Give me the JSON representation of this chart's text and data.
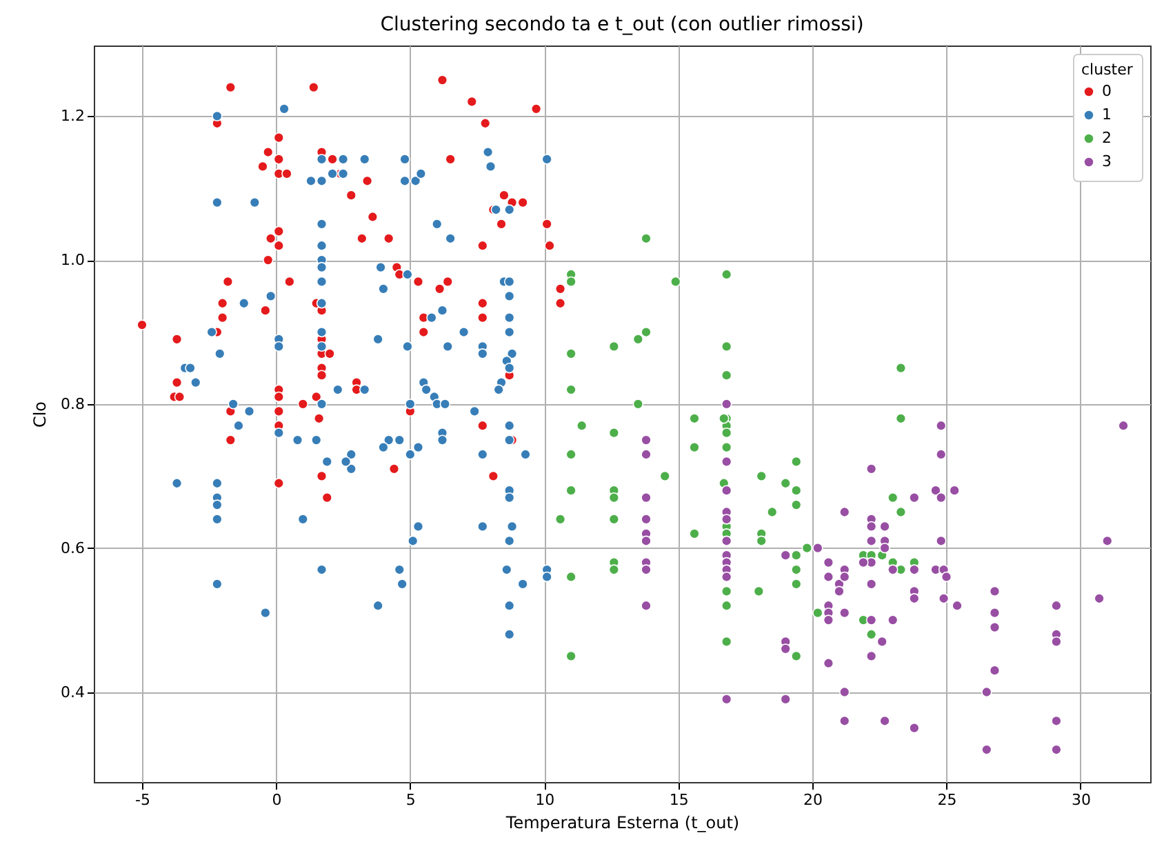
{
  "chart_data": {
    "type": "scatter",
    "title": "Clustering secondo ta e t_out (con outlier rimossi)",
    "xlabel": "Temperatura Esterna (t_out)",
    "ylabel": "Clo",
    "legend_title": "cluster",
    "legend": "top right",
    "grid": true,
    "marker": "circle",
    "xlim": [
      -6.8,
      32.6
    ],
    "xticks": [
      -5,
      0,
      5,
      10,
      15,
      20,
      25,
      30
    ],
    "ylim": [
      0.275,
      1.298
    ],
    "yticks": [
      0.4,
      0.6,
      0.8,
      {
        "value": 1,
        "label": "1.0"
      },
      1.2
    ],
    "series": [
      {
        "name": "0",
        "color": "#e41a1c",
        "x": [
          -5,
          -3.7,
          -3.7,
          -3.8,
          -3.6,
          -2.2,
          -2.2,
          -2,
          -1.7,
          -1.8,
          -1.7,
          -1.7,
          -2,
          -0.5,
          -0.3,
          -0.2,
          -0.3,
          -0.4,
          0.1,
          0.1,
          0.1,
          0.1,
          0.1,
          0.4,
          0.1,
          0.1,
          0.1,
          0.1,
          0.1,
          0.5,
          1,
          1.4,
          1.5,
          1.5,
          1.7,
          1.7,
          1.7,
          1.7,
          1.7,
          1.7,
          1.7,
          2,
          1.9,
          1.6,
          2.4,
          2.1,
          2.8,
          3.2,
          3.4,
          3.6,
          3,
          3,
          4.4,
          4.2,
          4.5,
          4.6,
          5.3,
          5.5,
          5.5,
          5,
          6.2,
          6.5,
          6.1,
          6.4,
          7.3,
          7.8,
          8.5,
          8.1,
          7.7,
          7.7,
          7.7,
          8.4,
          8.8,
          7.7,
          8.7,
          8.1,
          8.8,
          9.7,
          10.1,
          10.2,
          10.6,
          10.6,
          9.2
        ],
        "values": [
          0.91,
          0.89,
          0.83,
          0.81,
          0.81,
          1.19,
          0.9,
          0.94,
          1.24,
          0.97,
          0.79,
          0.75,
          0.92,
          1.13,
          1.15,
          1.03,
          1,
          0.93,
          1.17,
          1.14,
          1.12,
          1.04,
          1.02,
          1.12,
          0.82,
          0.81,
          0.79,
          0.77,
          0.69,
          0.97,
          0.8,
          1.24,
          0.94,
          0.81,
          1.15,
          0.93,
          0.89,
          0.87,
          0.85,
          0.84,
          0.7,
          0.87,
          0.67,
          0.78,
          1.12,
          1.14,
          1.09,
          1.03,
          1.11,
          1.06,
          0.83,
          0.82,
          0.71,
          1.03,
          0.99,
          0.98,
          0.97,
          0.92,
          0.9,
          0.79,
          1.25,
          1.14,
          0.96,
          0.97,
          1.22,
          1.19,
          1.09,
          1.07,
          1.02,
          0.94,
          0.92,
          1.05,
          1.08,
          0.77,
          0.84,
          0.7,
          0.75,
          1.21,
          1.05,
          1.02,
          0.96,
          0.94,
          1.08
        ]
      },
      {
        "name": "1",
        "color": "#377eb8",
        "x": [
          -3.7,
          -3.4,
          -3.2,
          -3,
          -2.2,
          -2.2,
          -2.4,
          -2.1,
          -2.2,
          -2.2,
          -2.2,
          -2.2,
          -2.2,
          -1.6,
          -1.4,
          -1,
          -1.2,
          -0.8,
          -0.4,
          -0.2,
          0.1,
          0.1,
          0.1,
          0.3,
          0.8,
          1,
          1.3,
          1.5,
          1.7,
          1.7,
          1.7,
          1.7,
          1.7,
          1.7,
          1.7,
          1.7,
          1.7,
          1.7,
          1.7,
          1.7,
          1.9,
          2.1,
          2.5,
          2.5,
          2.3,
          2.8,
          2.8,
          2.6,
          3.3,
          3.3,
          3.8,
          3.8,
          3.9,
          4,
          4.2,
          4,
          4.8,
          4.8,
          4.9,
          4.9,
          4.6,
          4.6,
          4.7,
          5,
          5.1,
          5.3,
          5,
          5.3,
          5.2,
          5.4,
          5.5,
          5.6,
          5.9,
          6,
          6.3,
          5.8,
          6,
          6.2,
          6.4,
          6.2,
          6.2,
          6.5,
          7,
          7.4,
          7.7,
          7.7,
          7.7,
          7.7,
          7.9,
          8,
          8.2,
          8.7,
          8.5,
          8.7,
          8.7,
          8.7,
          8.7,
          8.8,
          8.6,
          8.7,
          8.4,
          8.3,
          8.7,
          8.7,
          8.7,
          8.7,
          8.8,
          8.7,
          8.6,
          8.7,
          8.7,
          9.2,
          9.3,
          10.1,
          10.1,
          10.1
        ],
        "values": [
          0.69,
          0.85,
          0.85,
          0.83,
          1.2,
          1.08,
          0.9,
          0.87,
          0.69,
          0.67,
          0.66,
          0.64,
          0.55,
          0.8,
          0.77,
          0.79,
          0.94,
          1.08,
          0.51,
          0.95,
          0.89,
          0.88,
          0.76,
          1.21,
          0.75,
          0.64,
          1.11,
          0.75,
          1.14,
          1.11,
          1.05,
          1.02,
          1,
          0.99,
          0.97,
          0.94,
          0.9,
          0.88,
          0.8,
          0.57,
          0.72,
          1.12,
          1.14,
          1.12,
          0.82,
          0.73,
          0.71,
          0.72,
          1.14,
          0.82,
          0.89,
          0.52,
          0.99,
          0.96,
          0.75,
          0.74,
          1.14,
          1.11,
          0.98,
          0.88,
          0.75,
          0.57,
          0.55,
          0.8,
          0.61,
          0.63,
          0.73,
          0.74,
          1.11,
          1.12,
          0.83,
          0.82,
          0.81,
          0.8,
          0.8,
          0.92,
          1.05,
          0.93,
          0.88,
          0.76,
          0.75,
          1.03,
          0.9,
          0.79,
          0.88,
          0.87,
          0.73,
          0.63,
          1.15,
          1.13,
          1.07,
          1.07,
          0.97,
          0.97,
          0.95,
          0.92,
          0.9,
          0.87,
          0.86,
          0.85,
          0.83,
          0.82,
          0.77,
          0.75,
          0.68,
          0.67,
          0.63,
          0.61,
          0.57,
          0.52,
          0.48,
          0.55,
          0.73,
          1.14,
          0.57,
          0.56
        ]
      },
      {
        "name": "2",
        "color": "#4daf4a",
        "x": [
          13.8,
          11,
          11,
          14.9,
          16.8,
          11,
          12.6,
          13.5,
          13.8,
          16.8,
          16.8,
          11,
          13.5,
          15.6,
          11.4,
          12.6,
          11,
          15.6,
          16.8,
          16.8,
          16.8,
          16.8,
          16.7,
          14.5,
          11,
          12.6,
          12.6,
          16.7,
          18.1,
          19,
          19.4,
          19.4,
          19.4,
          18.5,
          10.6,
          12.6,
          15.6,
          16.8,
          16.8,
          18.1,
          18.1,
          19.8,
          19.4,
          19.4,
          19.4,
          12.6,
          12.6,
          11,
          16.8,
          16.8,
          18,
          20.2,
          16.8,
          19.4,
          11,
          23.3,
          23.3,
          23,
          23.3,
          21.9,
          22.2,
          22.6,
          23,
          23.3,
          23.8,
          21.9,
          22.2
        ],
        "values": [
          1.03,
          0.98,
          0.97,
          0.97,
          0.98,
          0.87,
          0.88,
          0.89,
          0.9,
          0.88,
          0.84,
          0.82,
          0.8,
          0.78,
          0.77,
          0.76,
          0.73,
          0.74,
          0.78,
          0.77,
          0.76,
          0.74,
          0.78,
          0.7,
          0.68,
          0.68,
          0.67,
          0.69,
          0.7,
          0.69,
          0.72,
          0.68,
          0.66,
          0.65,
          0.64,
          0.64,
          0.62,
          0.63,
          0.62,
          0.62,
          0.61,
          0.6,
          0.59,
          0.57,
          0.55,
          0.58,
          0.57,
          0.56,
          0.54,
          0.52,
          0.54,
          0.51,
          0.47,
          0.45,
          0.45,
          0.85,
          0.78,
          0.67,
          0.65,
          0.59,
          0.59,
          0.59,
          0.58,
          0.57,
          0.58,
          0.5,
          0.48
        ]
      },
      {
        "name": "3",
        "color": "#984ea3",
        "x": [
          16.8,
          13.8,
          13.8,
          16.8,
          16.8,
          13.8,
          13.8,
          13.8,
          13.8,
          13.8,
          13.8,
          13.8,
          16.8,
          16.8,
          16.8,
          16.8,
          16.8,
          16.8,
          16.8,
          21.2,
          19,
          19,
          19,
          19,
          16.8,
          20.2,
          20.6,
          20.6,
          21,
          21,
          20.6,
          20.6,
          20.6,
          20.6,
          21.2,
          21.2,
          21.2,
          21.2,
          21.2,
          24.8,
          24.8,
          22.2,
          24.6,
          24.8,
          25.3,
          23.8,
          22.2,
          22.2,
          22.7,
          22.2,
          22.7,
          22.7,
          24.8,
          22.2,
          21.9,
          23,
          23.8,
          24.6,
          24.9,
          25,
          22.2,
          23.8,
          23.8,
          24.9,
          25.4,
          22.2,
          23,
          22.6,
          22.2,
          26.8,
          26.8,
          26.8,
          26.8,
          26.5,
          26.5,
          29.1,
          29.1,
          29.1,
          29.1,
          29.1,
          30.7,
          31,
          31.6,
          22.7,
          23.8
        ],
        "values": [
          0.8,
          0.75,
          0.73,
          0.72,
          0.68,
          0.67,
          0.64,
          0.62,
          0.61,
          0.58,
          0.57,
          0.52,
          0.65,
          0.64,
          0.61,
          0.59,
          0.58,
          0.57,
          0.56,
          0.65,
          0.59,
          0.47,
          0.46,
          0.39,
          0.39,
          0.6,
          0.58,
          0.56,
          0.55,
          0.54,
          0.52,
          0.51,
          0.5,
          0.44,
          0.57,
          0.56,
          0.51,
          0.4,
          0.36,
          0.77,
          0.73,
          0.71,
          0.68,
          0.67,
          0.68,
          0.67,
          0.64,
          0.63,
          0.63,
          0.61,
          0.61,
          0.6,
          0.61,
          0.58,
          0.58,
          0.57,
          0.57,
          0.57,
          0.57,
          0.56,
          0.55,
          0.54,
          0.53,
          0.53,
          0.52,
          0.5,
          0.5,
          0.47,
          0.45,
          0.54,
          0.51,
          0.49,
          0.43,
          0.4,
          0.32,
          0.52,
          0.48,
          0.47,
          0.36,
          0.32,
          0.53,
          0.61,
          0.77,
          0.36,
          0.35
        ]
      }
    ]
  }
}
